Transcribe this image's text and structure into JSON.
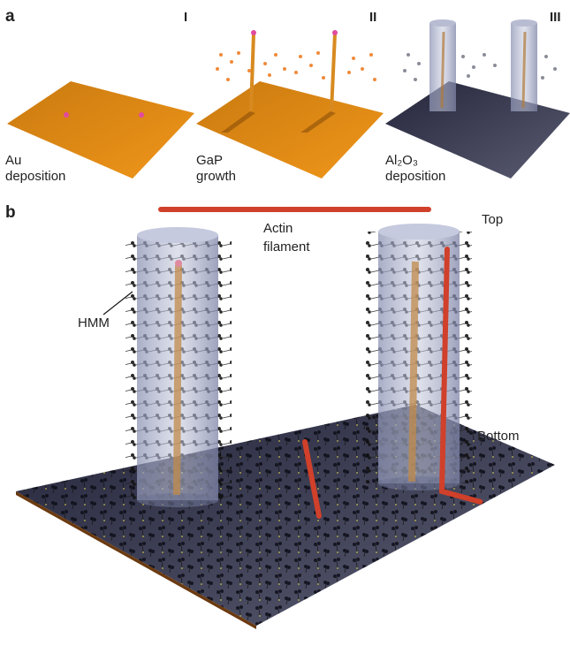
{
  "panel_a": {
    "label": "a",
    "steps": [
      {
        "numeral": "I",
        "caption": [
          "Au",
          "deposition"
        ]
      },
      {
        "numeral": "II",
        "caption": [
          "GaP",
          "growth"
        ]
      },
      {
        "numeral": "III",
        "caption": [
          "Al₂O₃",
          "deposition"
        ]
      }
    ]
  },
  "panel_b": {
    "label": "b",
    "actin": [
      "Actin",
      "filament"
    ],
    "top": "Top",
    "hmm": "HMM",
    "bottom": "Bottom"
  }
}
